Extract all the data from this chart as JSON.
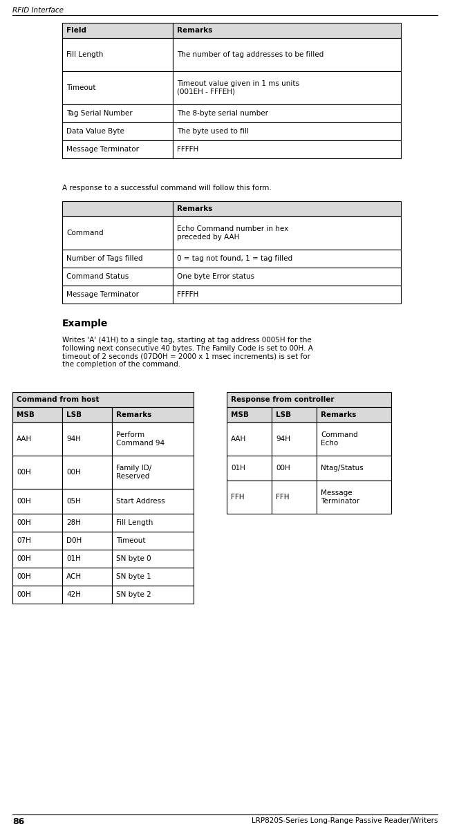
{
  "page_header": "RFID Interface",
  "page_footer_num": "86",
  "page_footer_text": "LRP820S-Series Long-Range Passive Reader/Writers",
  "bg_color": "#ffffff",
  "header_bg": "#d9d9d9",
  "table1": {
    "headers": [
      "Field",
      "Remarks"
    ],
    "rows": [
      [
        "Fill Length",
        "The number of tag addresses to be filled"
      ],
      [
        "Timeout",
        "Timeout value given in 1 ms units\n(001EH - FFFEH)"
      ],
      [
        "Tag Serial Number",
        "The 8-byte serial number"
      ],
      [
        "Data Value Byte",
        "The byte used to fill"
      ],
      [
        "Message Terminator",
        "FFFFH"
      ]
    ]
  },
  "response_text": "A response to a successful command will follow this form.",
  "table2": {
    "headers": [
      "",
      "Remarks"
    ],
    "rows": [
      [
        "Command",
        "Echo Command number in hex\npreceded by AAH"
      ],
      [
        "Number of Tags filled",
        "0 = tag not found, 1 = tag filled"
      ],
      [
        "Command Status",
        "One byte Error status"
      ],
      [
        "Message Terminator",
        "FFFFH"
      ]
    ]
  },
  "example_title": "Example",
  "example_text": "Writes 'A' (41H) to a single tag, starting at tag address 0005H for the\nfollowing next consecutive 40 bytes. The Family Code is set to 00H. A\ntimeout of 2 seconds (07D0H = 2000 x 1 msec increments) is set for\nthe completion of the command.",
  "host_table": {
    "title": "Command from host",
    "headers": [
      "MSB",
      "LSB",
      "Remarks"
    ],
    "rows": [
      [
        "AAH",
        "94H",
        "Perform\nCommand 94"
      ],
      [
        "00H",
        "00H",
        "Family ID/\nReserved"
      ],
      [
        "00H",
        "05H",
        "Start Address"
      ],
      [
        "00H",
        "28H",
        "Fill Length"
      ],
      [
        "07H",
        "D0H",
        "Timeout"
      ],
      [
        "00H",
        "01H",
        "SN byte 0"
      ],
      [
        "00H",
        "ACH",
        "SN byte 1"
      ],
      [
        "00H",
        "42H",
        "SN byte 2"
      ]
    ]
  },
  "controller_table": {
    "title": "Response from controller",
    "headers": [
      "MSB",
      "LSB",
      "Remarks"
    ],
    "rows": [
      [
        "AAH",
        "94H",
        "Command\nEcho"
      ],
      [
        "01H",
        "00H",
        "Ntag/Status"
      ],
      [
        "FFH",
        "FFH",
        "Message\nTerminator"
      ]
    ]
  }
}
